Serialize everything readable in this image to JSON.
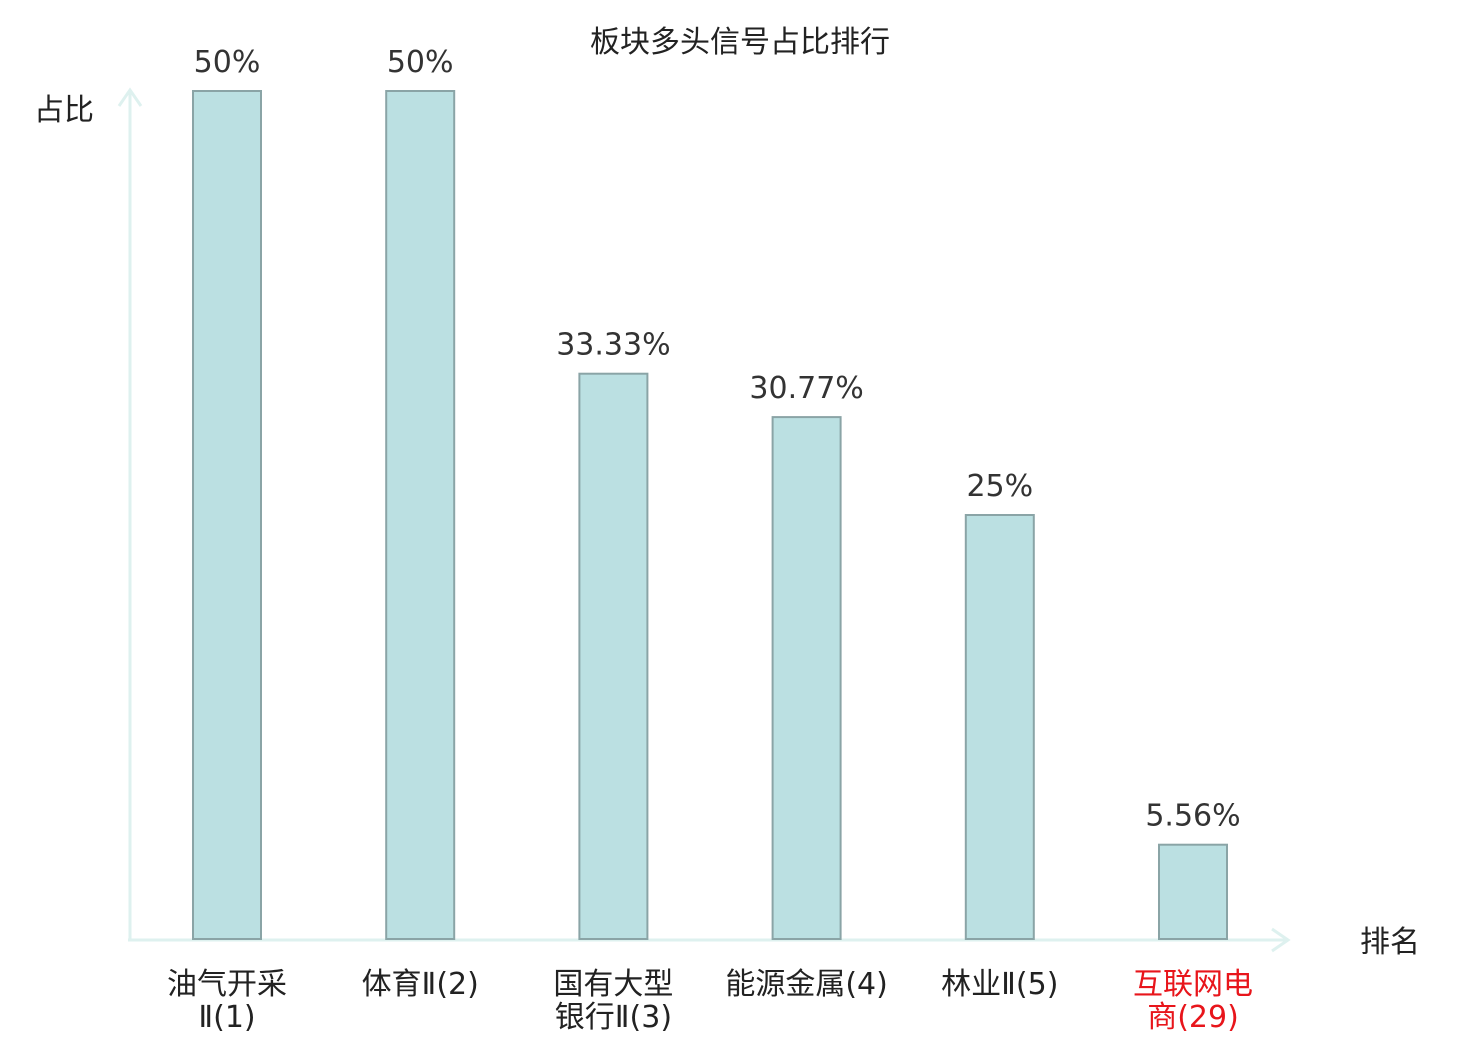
{
  "chart_data": {
    "type": "bar",
    "title": "板块多头信号占比排行",
    "ylabel": "占比",
    "xlabel": "排名",
    "ylim": [
      0,
      50
    ],
    "grid": false,
    "categories": [
      {
        "lines": [
          "油气开采",
          "Ⅱ(1)"
        ],
        "highlight": false
      },
      {
        "lines": [
          "体育Ⅱ(2)"
        ],
        "highlight": false
      },
      {
        "lines": [
          "国有大型",
          "银行Ⅱ(3)"
        ],
        "highlight": false
      },
      {
        "lines": [
          "能源金属(4)"
        ],
        "highlight": false
      },
      {
        "lines": [
          "林业Ⅱ(5)"
        ],
        "highlight": false
      },
      {
        "lines": [
          "互联网电",
          "商(29)"
        ],
        "highlight": true
      }
    ],
    "values": [
      50,
      50,
      33.33,
      30.77,
      25,
      5.56
    ],
    "value_labels": [
      "50%",
      "50%",
      "33.33%",
      "30.77%",
      "25%",
      "5.56%"
    ],
    "colors": {
      "bar_fill": "#bbe0e2",
      "bar_stroke": "#8aa4a6",
      "axis": "#def1ef",
      "highlight": "#e8151b"
    }
  }
}
